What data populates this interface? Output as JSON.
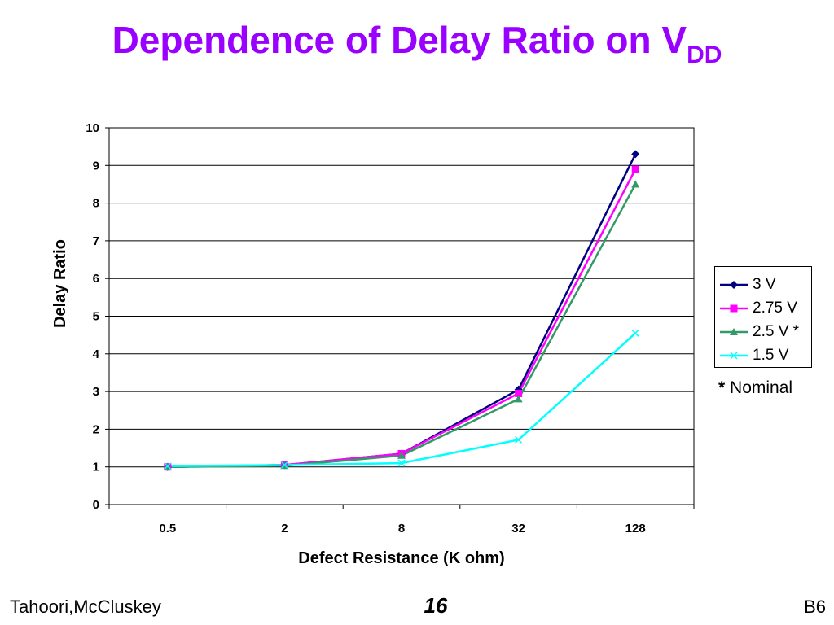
{
  "slide": {
    "title_main": "Dependence of Delay Ratio on V",
    "title_sub": "DD",
    "note_star": "*",
    "note_text": " Nominal",
    "footer_left": "Tahoori,McCluskey",
    "footer_center": "16",
    "footer_right": "B6"
  },
  "chart_data": {
    "type": "line",
    "title": "",
    "xlabel": "Defect Resistance (K ohm)",
    "ylabel": "Delay Ratio",
    "categories": [
      "0.5",
      "2",
      "8",
      "32",
      "128"
    ],
    "ylim": [
      0,
      10
    ],
    "yticks": [
      "0",
      "1",
      "2",
      "3",
      "4",
      "5",
      "6",
      "7",
      "8",
      "9",
      "10"
    ],
    "grid": "horizontal",
    "legend_position": "right",
    "series": [
      {
        "name": "3 V",
        "values": [
          1.0,
          1.05,
          1.35,
          3.05,
          9.3
        ],
        "color": "#000080",
        "marker": "diamond"
      },
      {
        "name": "2.75 V",
        "values": [
          1.0,
          1.05,
          1.35,
          2.95,
          8.9
        ],
        "color": "#ff00ff",
        "marker": "square"
      },
      {
        "name": "2.5 V *",
        "values": [
          1.0,
          1.03,
          1.3,
          2.8,
          8.5
        ],
        "color": "#339966",
        "marker": "triangle"
      },
      {
        "name": "1.5 V",
        "values": [
          1.02,
          1.05,
          1.1,
          1.72,
          4.55
        ],
        "color": "#00ffff",
        "marker": "x"
      }
    ]
  }
}
